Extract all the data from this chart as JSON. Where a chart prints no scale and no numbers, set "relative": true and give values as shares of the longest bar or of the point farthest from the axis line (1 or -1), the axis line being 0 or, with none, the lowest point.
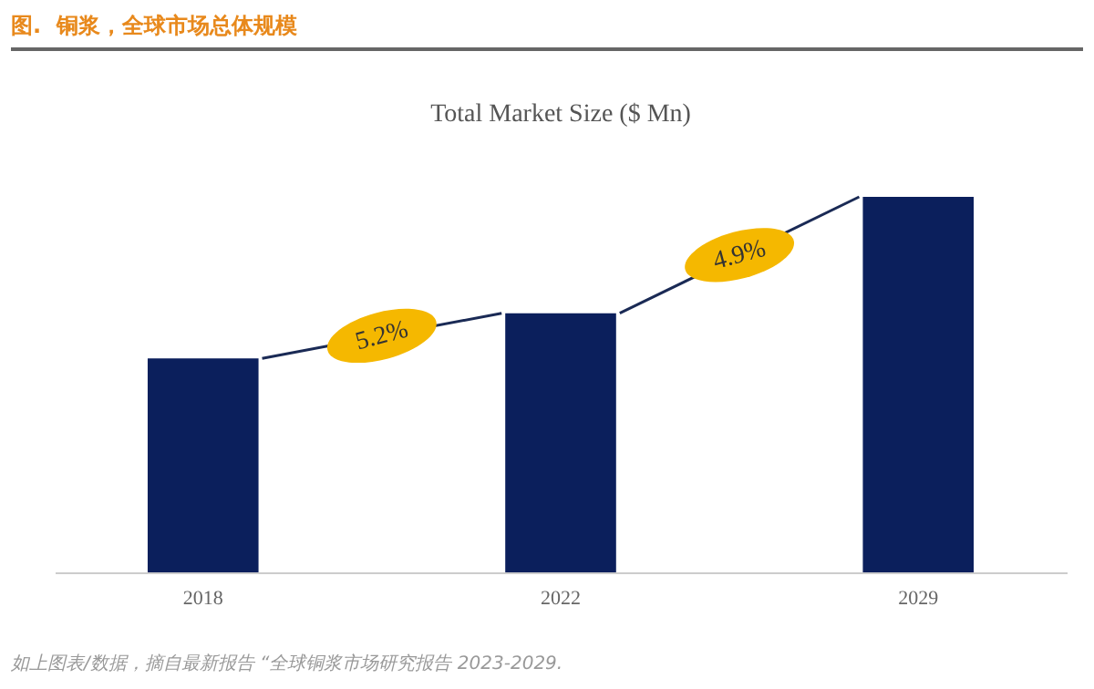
{
  "chart_data": {
    "type": "bar",
    "title": "图.  铜浆，全球市场总体规模",
    "subtitle": "Total Market Size ($ Mn)",
    "categories": [
      "2018",
      "2022",
      "2029"
    ],
    "values": [
      0.57,
      0.69,
      1
    ],
    "relative": true,
    "color": "#0b1f5c",
    "annotations": [
      "5.2%",
      "4.9%",
      "如上图表/数据，摘自最新报告 “全球铜浆市场研究报告 2023-2029."
    ]
  }
}
